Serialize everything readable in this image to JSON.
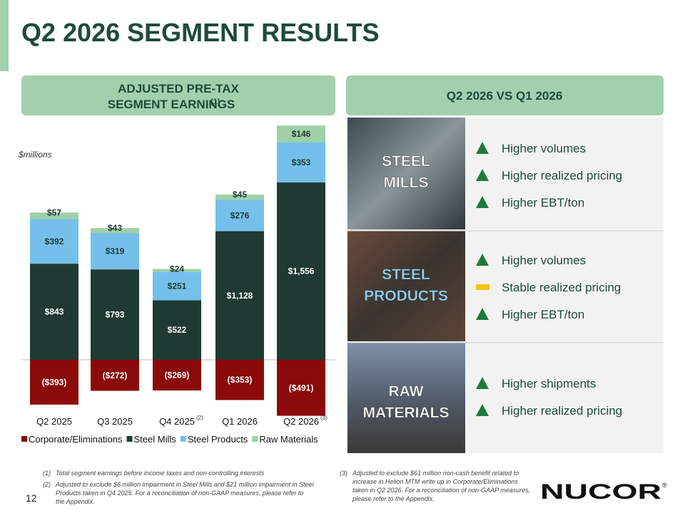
{
  "title": "Q2 2026 SEGMENT RESULTS",
  "left_header": {
    "text": "ADJUSTED PRE-TAX SEGMENT EARNINGS",
    "note": "(1)"
  },
  "right_header": "Q2 2026 VS Q1 2026",
  "chart_data": {
    "type": "bar",
    "stacked": true,
    "unit_label": "$millions",
    "categories": [
      "Q2 2025",
      "Q3 2025",
      "Q4 2025",
      "Q1 2026",
      "Q2 2026"
    ],
    "category_notes": [
      null,
      null,
      "(2)",
      null,
      "(3)"
    ],
    "series": [
      {
        "name": "Corporate/Eliminations",
        "color": "#8b0a0a",
        "values": [
          -393,
          -272,
          -269,
          -353,
          -491
        ],
        "value_labels": [
          "($393)",
          "($272)",
          "($269)",
          "($353)",
          "($491)"
        ],
        "label_color": "#ffffff"
      },
      {
        "name": "Steel Mills",
        "color": "#1f3a32",
        "values": [
          843,
          793,
          522,
          1128,
          1556
        ],
        "value_labels": [
          "$843",
          "$793",
          "$522",
          "$1,128",
          "$1,556"
        ],
        "label_color": "#ffffff"
      },
      {
        "name": "Steel Products",
        "color": "#74c0ea",
        "values": [
          392,
          319,
          251,
          276,
          353
        ],
        "value_labels": [
          "$392",
          "$319",
          "$251",
          "$276",
          "$353"
        ],
        "label_color": "#1f3a32"
      },
      {
        "name": "Raw Materials",
        "color": "#9fd0a8",
        "values": [
          57,
          43,
          24,
          45,
          146
        ],
        "value_labels": [
          "$57",
          "$43",
          "$24",
          "$45",
          "$146"
        ],
        "label_color": "#1f3a32"
      }
    ],
    "legend": "bottom"
  },
  "comparison": [
    {
      "segment": [
        "STEEL",
        "MILLS"
      ],
      "label_color": "#ffffff",
      "items": [
        {
          "text": "Higher volumes",
          "trend": "up"
        },
        {
          "text": "Higher realized pricing",
          "trend": "up"
        },
        {
          "text": "Higher EBT/ton",
          "trend": "up"
        }
      ]
    },
    {
      "segment": [
        "STEEL",
        "PRODUCTS"
      ],
      "label_color": "#8fd0f0",
      "items": [
        {
          "text": "Higher volumes",
          "trend": "up"
        },
        {
          "text": "Stable realized pricing",
          "trend": "flat"
        },
        {
          "text": "Higher EBT/ton",
          "trend": "up"
        }
      ]
    },
    {
      "segment": [
        "RAW",
        "MATERIALS"
      ],
      "label_color": "#ffffff",
      "items": [
        {
          "text": "Higher shipments",
          "trend": "up"
        },
        {
          "text": "Higher realized pricing",
          "trend": "up"
        }
      ]
    }
  ],
  "footnotes": [
    {
      "marker": "(1)",
      "text": "Total segment earnings before income taxes and non-controlling interests"
    },
    {
      "marker": "(2)",
      "text": "Adjusted to exclude $6 million impairment in Steel Mills and $21 million impairment in Steel Products taken in Q4 2025. For a reconciliation of non-GAAP measures, please refer to the Appendix."
    },
    {
      "marker": "(3)",
      "text": "Adjusted to exclude $61 million non-cash benefit related to increase in Helion MTM write up in Corporate/Eliminations taken in Q2 2026. For a reconciliation of non-GAAP measures, please refer to the Appendix."
    }
  ],
  "page_number": "12",
  "logo": {
    "text": "NUCOR",
    "mark": "®"
  }
}
